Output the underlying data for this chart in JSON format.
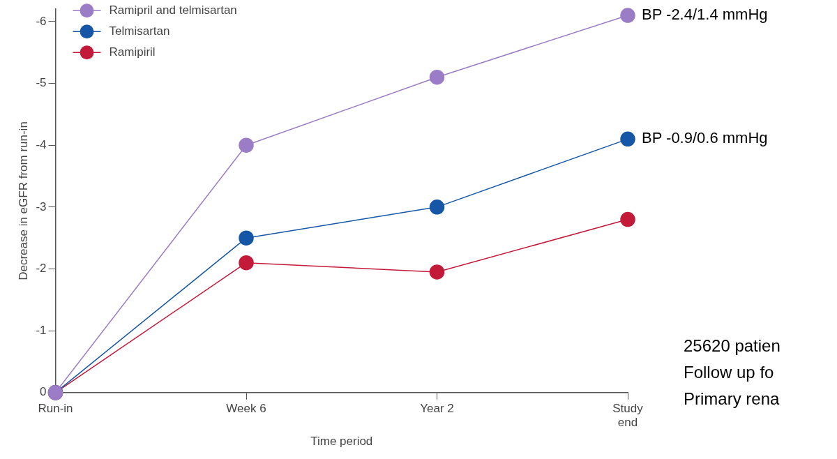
{
  "chart_data": {
    "type": "line",
    "xlabel": "Time period",
    "ylabel": "Decrease in eGFR from run-in",
    "categories": [
      "Run-in",
      "Week 6",
      "Year 2",
      "Study end"
    ],
    "series": [
      {
        "name": "Ramipril and telmisartan",
        "color": "#9b7cc6",
        "values": [
          0,
          -4.0,
          -5.1,
          -6.1
        ]
      },
      {
        "name": "Telmisartan",
        "color": "#1556a6",
        "values": [
          0,
          -2.5,
          -3.0,
          -4.1
        ]
      },
      {
        "name": "Ramipiril",
        "color": "#c41a3a",
        "values": [
          0,
          -2.1,
          -1.95,
          -2.8
        ]
      }
    ],
    "ylim": [
      0,
      -6.2
    ],
    "yticks": [
      0,
      -1,
      -2,
      -3,
      -4,
      -5,
      -6
    ],
    "grid": false,
    "legend": "top left",
    "marker": "circle",
    "line_style": "solid",
    "annotations": [
      {
        "text": "BP -2.4/1.4 mmHg",
        "x": "Study end",
        "y": -6.1
      },
      {
        "text": "BP -0.9/0.6 mmHg",
        "x": "Study end",
        "y": -4.1
      },
      "25620 patien",
      "Follow up fo",
      "Primary rena"
    ]
  }
}
